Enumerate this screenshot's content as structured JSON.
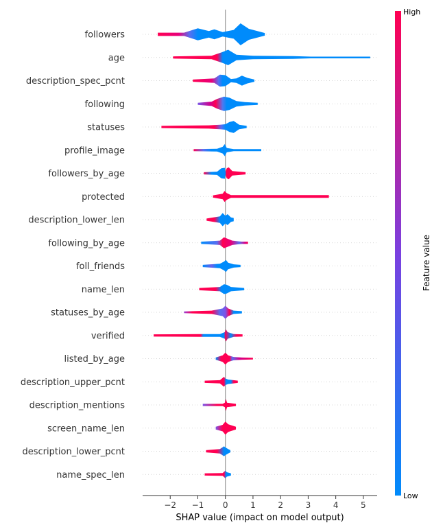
{
  "chart_data": {
    "type": "shap_violin",
    "xlabel": "SHAP value (impact on model output)",
    "xlim": [
      -3.0,
      5.5
    ],
    "xticks": [
      -2,
      -1,
      0,
      1,
      2,
      3,
      4,
      5
    ],
    "xtick_labels": [
      "−2",
      "−1",
      "0",
      "1",
      "2",
      "3",
      "4",
      "5"
    ],
    "colorbar": {
      "label": "Feature value",
      "high_label": "High",
      "low_label": "Low",
      "high_color": "#ff0052",
      "low_color": "#008bfb"
    },
    "features": [
      {
        "name": "followers",
        "min": -2.45,
        "max": 1.43,
        "shape": [
          [
            -2.45,
            0.15
          ],
          [
            -1.5,
            0.15
          ],
          [
            -1.0,
            0.55
          ],
          [
            -0.6,
            0.3
          ],
          [
            -0.4,
            0.45
          ],
          [
            -0.1,
            0.2
          ],
          [
            0.3,
            0.4
          ],
          [
            0.55,
            1.0
          ],
          [
            0.85,
            0.5
          ],
          [
            1.43,
            0.12
          ]
        ],
        "colors": [
          [
            -2.45,
            "#ff0052"
          ],
          [
            -1.7,
            "#e8007a"
          ],
          [
            -1.3,
            "#5a6ef0"
          ],
          [
            -1.0,
            "#008bfb"
          ],
          [
            1.43,
            "#008bfb"
          ]
        ]
      },
      {
        "name": "age",
        "min": -1.9,
        "max": 5.25,
        "shape": [
          [
            -1.9,
            0.1
          ],
          [
            -0.5,
            0.15
          ],
          [
            -0.1,
            0.5
          ],
          [
            0.1,
            0.7
          ],
          [
            0.4,
            0.25
          ],
          [
            1.0,
            0.15
          ],
          [
            2.45,
            0.12
          ],
          [
            3.1,
            0.08
          ],
          [
            5.25,
            0.08
          ]
        ],
        "colors": [
          [
            -1.9,
            "#ff0052"
          ],
          [
            -0.3,
            "#ff0052"
          ],
          [
            -0.1,
            "#008bfb"
          ],
          [
            5.25,
            "#008bfb"
          ]
        ]
      },
      {
        "name": "description_spec_pcnt",
        "min": -1.18,
        "max": 1.05,
        "shape": [
          [
            -1.18,
            0.1
          ],
          [
            -0.4,
            0.2
          ],
          [
            -0.2,
            0.55
          ],
          [
            0.0,
            0.5
          ],
          [
            0.2,
            0.15
          ],
          [
            0.4,
            0.2
          ],
          [
            0.6,
            0.45
          ],
          [
            0.8,
            0.25
          ],
          [
            1.05,
            0.1
          ]
        ],
        "colors": [
          [
            -1.18,
            "#ff0052"
          ],
          [
            -0.5,
            "#e8007a"
          ],
          [
            -0.25,
            "#5a6ef0"
          ],
          [
            -0.1,
            "#008bfb"
          ],
          [
            1.05,
            "#008bfb"
          ]
        ]
      },
      {
        "name": "following",
        "min": -1.0,
        "max": 1.17,
        "shape": [
          [
            -1.0,
            0.1
          ],
          [
            -0.5,
            0.2
          ],
          [
            -0.3,
            0.45
          ],
          [
            -0.05,
            0.65
          ],
          [
            0.15,
            0.55
          ],
          [
            0.4,
            0.25
          ],
          [
            0.7,
            0.15
          ],
          [
            1.17,
            0.1
          ]
        ],
        "colors": [
          [
            -1.0,
            "#7a55e8"
          ],
          [
            -0.55,
            "#d0008c"
          ],
          [
            -0.35,
            "#ff0052"
          ],
          [
            -0.1,
            "#4f78f0"
          ],
          [
            0.05,
            "#008bfb"
          ],
          [
            1.17,
            "#008bfb"
          ]
        ]
      },
      {
        "name": "statuses",
        "min": -2.32,
        "max": 0.77,
        "shape": [
          [
            -2.32,
            0.1
          ],
          [
            -0.6,
            0.15
          ],
          [
            -0.2,
            0.2
          ],
          [
            0.0,
            0.25
          ],
          [
            0.15,
            0.45
          ],
          [
            0.3,
            0.55
          ],
          [
            0.5,
            0.2
          ],
          [
            0.77,
            0.1
          ]
        ],
        "colors": [
          [
            -2.32,
            "#ff0052"
          ],
          [
            -0.4,
            "#ff0052"
          ],
          [
            -0.15,
            "#5a6ef0"
          ],
          [
            0.0,
            "#008bfb"
          ],
          [
            0.77,
            "#008bfb"
          ]
        ]
      },
      {
        "name": "profile_image",
        "min": -1.15,
        "max": 1.3,
        "shape": [
          [
            -1.15,
            0.1
          ],
          [
            -0.3,
            0.12
          ],
          [
            -0.1,
            0.3
          ],
          [
            -0.02,
            0.55
          ],
          [
            0.05,
            0.2
          ],
          [
            0.3,
            0.1
          ],
          [
            1.3,
            0.1
          ]
        ],
        "colors": [
          [
            -1.15,
            "#ff0052"
          ],
          [
            -0.8,
            "#5a6ef0"
          ],
          [
            -0.5,
            "#008bfb"
          ],
          [
            1.3,
            "#008bfb"
          ]
        ]
      },
      {
        "name": "followers_by_age",
        "min": -0.78,
        "max": 0.73,
        "shape": [
          [
            -0.78,
            0.1
          ],
          [
            -0.3,
            0.15
          ],
          [
            -0.15,
            0.45
          ],
          [
            -0.02,
            0.5
          ],
          [
            0.0,
            0.15
          ],
          [
            0.05,
            0.45
          ],
          [
            0.12,
            0.55
          ],
          [
            0.25,
            0.2
          ],
          [
            0.73,
            0.1
          ]
        ],
        "colors": [
          [
            -0.78,
            "#ff0052"
          ],
          [
            -0.5,
            "#008bfb"
          ],
          [
            0.0,
            "#008bfb"
          ],
          [
            0.02,
            "#ff0052"
          ],
          [
            0.73,
            "#ff0052"
          ]
        ]
      },
      {
        "name": "protected",
        "min": -0.45,
        "max": 3.75,
        "shape": [
          [
            -0.45,
            0.1
          ],
          [
            -0.1,
            0.25
          ],
          [
            -0.03,
            0.5
          ],
          [
            0.05,
            0.3
          ],
          [
            0.2,
            0.12
          ],
          [
            3.75,
            0.12
          ]
        ],
        "colors": [
          [
            -0.45,
            "#ff0052"
          ],
          [
            3.75,
            "#ff0052"
          ]
        ]
      },
      {
        "name": "description_lower_len",
        "min": -0.68,
        "max": 0.3,
        "shape": [
          [
            -0.68,
            0.1
          ],
          [
            -0.2,
            0.3
          ],
          [
            -0.1,
            0.6
          ],
          [
            0.0,
            0.35
          ],
          [
            0.08,
            0.5
          ],
          [
            0.2,
            0.2
          ],
          [
            0.3,
            0.15
          ]
        ],
        "colors": [
          [
            -0.68,
            "#ff0052"
          ],
          [
            -0.4,
            "#ff0052"
          ],
          [
            -0.2,
            "#008bfb"
          ],
          [
            0.3,
            "#008bfb"
          ]
        ]
      },
      {
        "name": "following_by_age",
        "min": -0.88,
        "max": 0.82,
        "shape": [
          [
            -0.88,
            0.1
          ],
          [
            -0.2,
            0.2
          ],
          [
            -0.05,
            0.5
          ],
          [
            0.05,
            0.4
          ],
          [
            0.25,
            0.2
          ],
          [
            0.6,
            0.1
          ],
          [
            0.82,
            0.1
          ]
        ],
        "colors": [
          [
            -0.88,
            "#008bfb"
          ],
          [
            -0.3,
            "#5a6ef0"
          ],
          [
            -0.1,
            "#ff0052"
          ],
          [
            0.2,
            "#e8007a"
          ],
          [
            0.5,
            "#5a6ef0"
          ],
          [
            0.7,
            "#d0008c"
          ],
          [
            0.82,
            "#ff0052"
          ]
        ]
      },
      {
        "name": "foll_friends",
        "min": -0.82,
        "max": 0.55,
        "shape": [
          [
            -0.82,
            0.1
          ],
          [
            -0.2,
            0.2
          ],
          [
            -0.05,
            0.4
          ],
          [
            0.02,
            0.55
          ],
          [
            0.1,
            0.3
          ],
          [
            0.3,
            0.15
          ],
          [
            0.55,
            0.1
          ]
        ],
        "colors": [
          [
            -0.82,
            "#008bfb"
          ],
          [
            -0.5,
            "#6a62ec"
          ],
          [
            -0.3,
            "#008bfb"
          ],
          [
            0.55,
            "#008bfb"
          ]
        ]
      },
      {
        "name": "name_len",
        "min": -0.95,
        "max": 0.68,
        "shape": [
          [
            -0.95,
            0.1
          ],
          [
            -0.2,
            0.2
          ],
          [
            -0.05,
            0.45
          ],
          [
            0.05,
            0.4
          ],
          [
            0.2,
            0.2
          ],
          [
            0.68,
            0.1
          ]
        ],
        "colors": [
          [
            -0.95,
            "#ff0052"
          ],
          [
            -0.35,
            "#ff0052"
          ],
          [
            -0.15,
            "#008bfb"
          ],
          [
            0.68,
            "#008bfb"
          ]
        ]
      },
      {
        "name": "statuses_by_age",
        "min": -1.5,
        "max": 0.6,
        "shape": [
          [
            -1.5,
            0.08
          ],
          [
            -0.5,
            0.15
          ],
          [
            -0.1,
            0.35
          ],
          [
            0.0,
            0.6
          ],
          [
            0.1,
            0.35
          ],
          [
            0.3,
            0.15
          ],
          [
            0.6,
            0.1
          ]
        ],
        "colors": [
          [
            -1.5,
            "#9a40d8"
          ],
          [
            -1.2,
            "#ff0052"
          ],
          [
            -0.5,
            "#ff0052"
          ],
          [
            -0.2,
            "#5a6ef0"
          ],
          [
            0.0,
            "#7a55e8"
          ],
          [
            0.15,
            "#ff0052"
          ],
          [
            0.3,
            "#008bfb"
          ],
          [
            0.6,
            "#008bfb"
          ]
        ]
      },
      {
        "name": "verified",
        "min": -2.6,
        "max": 0.62,
        "shape": [
          [
            -2.6,
            0.1
          ],
          [
            -0.85,
            0.12
          ],
          [
            -0.2,
            0.12
          ],
          [
            -0.02,
            0.3
          ],
          [
            0.02,
            0.55
          ],
          [
            0.08,
            0.3
          ],
          [
            0.3,
            0.12
          ],
          [
            0.62,
            0.1
          ]
        ],
        "colors": [
          [
            -2.6,
            "#ff0052"
          ],
          [
            -0.9,
            "#ff0052"
          ],
          [
            -0.8,
            "#008bfb"
          ],
          [
            -0.05,
            "#008bfb"
          ],
          [
            0.0,
            "#ff0052"
          ],
          [
            0.2,
            "#008bfb"
          ],
          [
            0.4,
            "#ff0052"
          ],
          [
            0.62,
            "#ff0052"
          ]
        ]
      },
      {
        "name": "listed_by_age",
        "min": -0.35,
        "max": 1.0,
        "shape": [
          [
            -0.35,
            0.1
          ],
          [
            -0.1,
            0.3
          ],
          [
            0.0,
            0.55
          ],
          [
            0.1,
            0.3
          ],
          [
            0.3,
            0.15
          ],
          [
            0.6,
            0.1
          ],
          [
            1.0,
            0.08
          ]
        ],
        "colors": [
          [
            -0.35,
            "#008bfb"
          ],
          [
            -0.15,
            "#ff0052"
          ],
          [
            0.15,
            "#ff0052"
          ],
          [
            0.25,
            "#5a6ef0"
          ],
          [
            0.5,
            "#d0008c"
          ],
          [
            1.0,
            "#ff0052"
          ]
        ]
      },
      {
        "name": "description_upper_pcnt",
        "min": -0.75,
        "max": 0.45,
        "shape": [
          [
            -0.75,
            0.1
          ],
          [
            -0.2,
            0.15
          ],
          [
            -0.05,
            0.45
          ],
          [
            0.0,
            0.3
          ],
          [
            0.1,
            0.2
          ],
          [
            0.45,
            0.1
          ]
        ],
        "colors": [
          [
            -0.75,
            "#ff0052"
          ],
          [
            -0.05,
            "#ff0052"
          ],
          [
            0.02,
            "#008bfb"
          ],
          [
            0.2,
            "#008bfb"
          ],
          [
            0.3,
            "#ff0052"
          ],
          [
            0.45,
            "#ff0052"
          ]
        ]
      },
      {
        "name": "description_mentions",
        "min": -0.82,
        "max": 0.38,
        "shape": [
          [
            -0.82,
            0.1
          ],
          [
            -0.1,
            0.1
          ],
          [
            -0.02,
            0.2
          ],
          [
            0.02,
            0.55
          ],
          [
            0.06,
            0.2
          ],
          [
            0.38,
            0.1
          ]
        ],
        "colors": [
          [
            -0.82,
            "#7a55e8"
          ],
          [
            -0.3,
            "#ff0052"
          ],
          [
            0.0,
            "#ff0052"
          ],
          [
            0.38,
            "#ff0052"
          ]
        ]
      },
      {
        "name": "screen_name_len",
        "min": -0.35,
        "max": 0.38,
        "shape": [
          [
            -0.35,
            0.12
          ],
          [
            -0.1,
            0.3
          ],
          [
            0.0,
            0.6
          ],
          [
            0.1,
            0.35
          ],
          [
            0.38,
            0.12
          ]
        ],
        "colors": [
          [
            -0.35,
            "#7a55e8"
          ],
          [
            -0.1,
            "#ff0052"
          ],
          [
            0.38,
            "#ff0052"
          ]
        ]
      },
      {
        "name": "description_lower_pcnt",
        "min": -0.7,
        "max": 0.18,
        "shape": [
          [
            -0.7,
            0.1
          ],
          [
            -0.2,
            0.2
          ],
          [
            -0.05,
            0.45
          ],
          [
            0.0,
            0.35
          ],
          [
            0.1,
            0.2
          ],
          [
            0.18,
            0.1
          ]
        ],
        "colors": [
          [
            -0.7,
            "#ff0052"
          ],
          [
            -0.3,
            "#ff0052"
          ],
          [
            -0.05,
            "#008bfb"
          ],
          [
            0.18,
            "#008bfb"
          ]
        ]
      },
      {
        "name": "name_spec_len",
        "min": -0.75,
        "max": 0.2,
        "shape": [
          [
            -0.75,
            0.1
          ],
          [
            -0.1,
            0.12
          ],
          [
            0.0,
            0.35
          ],
          [
            0.05,
            0.2
          ],
          [
            0.2,
            0.1
          ]
        ],
        "colors": [
          [
            -0.75,
            "#ff0052"
          ],
          [
            -0.05,
            "#ff0052"
          ],
          [
            0.02,
            "#008bfb"
          ],
          [
            0.2,
            "#008bfb"
          ]
        ]
      }
    ]
  }
}
